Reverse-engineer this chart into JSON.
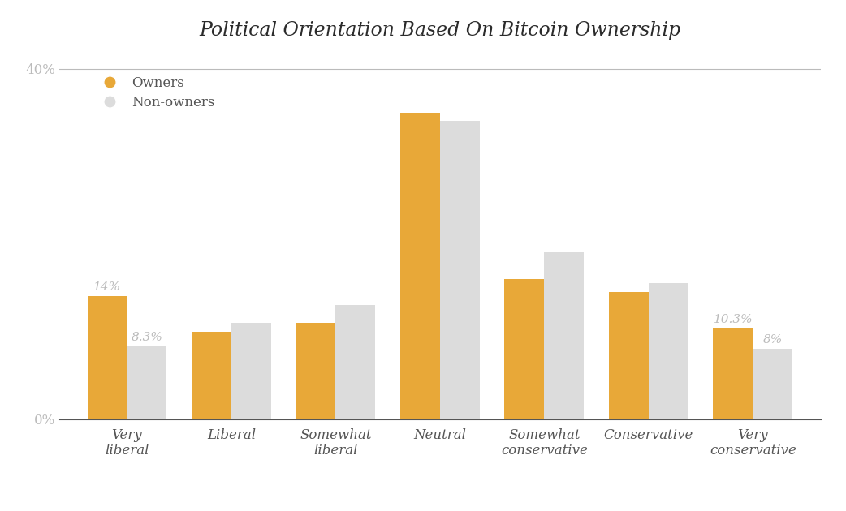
{
  "title": "Political Orientation Based On Bitcoin Ownership",
  "categories": [
    "Very\nliberal",
    "Liberal",
    "Somewhat\nliberal",
    "Neutral",
    "Somewhat\nconservative",
    "Conservative",
    "Very\nconservative"
  ],
  "owners": [
    14,
    10,
    11,
    35,
    16,
    14.5,
    10.3
  ],
  "non_owners": [
    8.3,
    11,
    13,
    34,
    19,
    15.5,
    8
  ],
  "owner_color": "#E8A838",
  "non_owner_color": "#DCDCDC",
  "bar_width": 0.38,
  "ylim": [
    0,
    42
  ],
  "owner_label": "Owners",
  "non_owner_label": "Non-owners",
  "owner_annotations": [
    "14%",
    "10.3%"
  ],
  "non_owner_annotations": [
    "8.3%",
    "8%"
  ],
  "background_color": "#FFFFFF",
  "title_color": "#2b2b2b",
  "axis_color": "#BBBBBB",
  "annotation_color": "#BBBBBB",
  "legend_color": "#555555",
  "title_fontsize": 17,
  "tick_fontsize": 12,
  "annotation_fontsize": 11
}
